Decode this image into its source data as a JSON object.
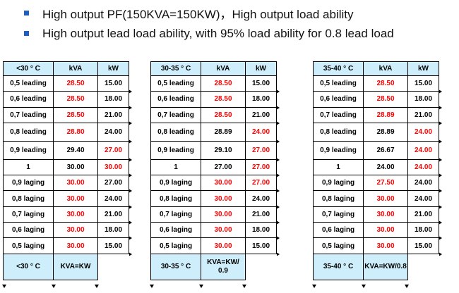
{
  "bullets": [
    "High output PF(150KVA=150KW)，High output load ability",
    "High output lead load ability, with 95% load ability for 0.8 lead load"
  ],
  "colors": {
    "header_bg": "#cdeefa",
    "highlight": "#ff0000",
    "bullet": "#1f5fbf"
  },
  "tables": [
    {
      "header": [
        "<30 ° C",
        "kVA",
        "kW"
      ],
      "rows": [
        {
          "pf": "0,5 leading",
          "kva": "28.50",
          "kw": "15.00",
          "kva_red": true,
          "kw_red": false
        },
        {
          "pf": "0,6 leading",
          "kva": "28.50",
          "kw": "18.00",
          "kva_red": true,
          "kw_red": false
        },
        {
          "pf": "0,7 leading",
          "kva": "28.50",
          "kw": "21.00",
          "kva_red": true,
          "kw_red": false
        },
        {
          "pf": "0,8 leading",
          "kva": "28.80",
          "kw": "24.00",
          "kva_red": true,
          "kw_red": false
        },
        {
          "pf": "0,9 leading",
          "kva": "29.40",
          "kw": "27.00",
          "kva_red": false,
          "kw_red": true
        },
        {
          "pf": "1",
          "kva": "30.00",
          "kw": "30.00",
          "kva_red": false,
          "kw_red": true
        },
        {
          "pf": "0,9 laging",
          "kva": "30.00",
          "kw": "27.00",
          "kva_red": true,
          "kw_red": false
        },
        {
          "pf": "0,8 laging",
          "kva": "30.00",
          "kw": "24.00",
          "kva_red": true,
          "kw_red": false
        },
        {
          "pf": "0,7 laging",
          "kva": "30.00",
          "kw": "21.00",
          "kva_red": true,
          "kw_red": false
        },
        {
          "pf": "0,6 laging",
          "kva": "30.00",
          "kw": "18.00",
          "kva_red": true,
          "kw_red": false
        },
        {
          "pf": "0,5 laging",
          "kva": "30.00",
          "kw": "15.00",
          "kva_red": true,
          "kw_red": false
        }
      ],
      "footer": [
        "<30 ° C",
        "KVA=KW"
      ]
    },
    {
      "header": [
        "30-35 ° C",
        "kVA",
        "kW"
      ],
      "rows": [
        {
          "pf": "0,5 leading",
          "kva": "28.50",
          "kw": "15.00",
          "kva_red": true,
          "kw_red": false
        },
        {
          "pf": "0,6 leading",
          "kva": "28.50",
          "kw": "18.00",
          "kva_red": true,
          "kw_red": false
        },
        {
          "pf": "0,7 leading",
          "kva": "28.50",
          "kw": "21.00",
          "kva_red": true,
          "kw_red": false
        },
        {
          "pf": "0,8 leading",
          "kva": "28.89",
          "kw": "24.00",
          "kva_red": false,
          "kw_red": true
        },
        {
          "pf": "0,9 leading",
          "kva": "29.10",
          "kw": "27.00",
          "kva_red": false,
          "kw_red": true
        },
        {
          "pf": "1",
          "kva": "27.00",
          "kw": "27.00",
          "kva_red": false,
          "kw_red": true
        },
        {
          "pf": "0,9 laging",
          "kva": "30.00",
          "kw": "27.00",
          "kva_red": true,
          "kw_red": true
        },
        {
          "pf": "0,8 laging",
          "kva": "30.00",
          "kw": "24.00",
          "kva_red": true,
          "kw_red": false
        },
        {
          "pf": "0,7 laging",
          "kva": "30.00",
          "kw": "21.00",
          "kva_red": true,
          "kw_red": false
        },
        {
          "pf": "0,6 laging",
          "kva": "30.00",
          "kw": "18.00",
          "kva_red": true,
          "kw_red": false
        },
        {
          "pf": "0,5 laging",
          "kva": "30.00",
          "kw": "15.00",
          "kva_red": true,
          "kw_red": false
        }
      ],
      "footer": [
        "30-35 ° C",
        "KVA=KW/ 0.9"
      ]
    },
    {
      "header": [
        "35-40 ° C",
        "kVA",
        "kW"
      ],
      "rows": [
        {
          "pf": "0,5 leading",
          "kva": "28.50",
          "kw": "15.00",
          "kva_red": true,
          "kw_red": false
        },
        {
          "pf": "0,6 leading",
          "kva": "28.50",
          "kw": "18.00",
          "kva_red": true,
          "kw_red": false
        },
        {
          "pf": "0,7 leading",
          "kva": "28.89",
          "kw": "21.00",
          "kva_red": true,
          "kw_red": false
        },
        {
          "pf": "0,8 leading",
          "kva": "28.89",
          "kw": "24.00",
          "kva_red": false,
          "kw_red": true
        },
        {
          "pf": "0,9 leading",
          "kva": "26.67",
          "kw": "24.00",
          "kva_red": false,
          "kw_red": true
        },
        {
          "pf": "1",
          "kva": "24.00",
          "kw": "24.00",
          "kva_red": false,
          "kw_red": true
        },
        {
          "pf": "0,9 laging",
          "kva": "27.50",
          "kw": "24.00",
          "kva_red": true,
          "kw_red": false
        },
        {
          "pf": "0,8 laging",
          "kva": "30.00",
          "kw": "24.00",
          "kva_red": true,
          "kw_red": false
        },
        {
          "pf": "0,7 laging",
          "kva": "30.00",
          "kw": "21.00",
          "kva_red": true,
          "kw_red": false
        },
        {
          "pf": "0,6 laging",
          "kva": "30.00",
          "kw": "18.00",
          "kva_red": true,
          "kw_red": false
        },
        {
          "pf": "0,5 laging",
          "kva": "30.00",
          "kw": "15.00",
          "kva_red": true,
          "kw_red": false
        }
      ],
      "footer": [
        "35-40 ° C",
        "KVA=KW/0.8"
      ]
    }
  ]
}
